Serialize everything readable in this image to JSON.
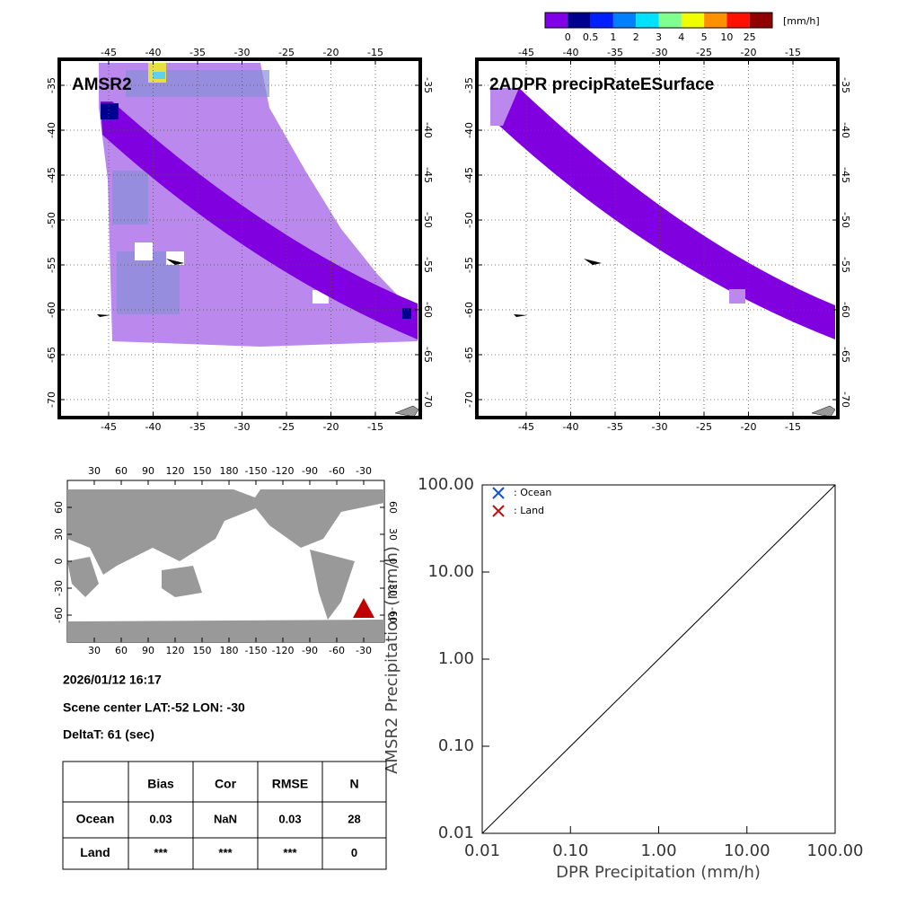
{
  "colorbar": {
    "labels": [
      0,
      0.5,
      1,
      2,
      3,
      4,
      5,
      10,
      25
    ],
    "colors": [
      "#8000e8",
      "#000090",
      "#0020ff",
      "#0080ff",
      "#00e0ff",
      "#80ff90",
      "#f0ff00",
      "#ff9000",
      "#ff1000",
      "#900000"
    ],
    "unit": "[mm/h]"
  },
  "maps": [
    {
      "title": "AMSR2",
      "lon_ticks": [
        -45,
        -40,
        -35,
        -30,
        -25,
        -20,
        -15
      ],
      "lat_ticks": [
        -35,
        -40,
        -45,
        -50,
        -55,
        -60,
        -65,
        -70
      ]
    },
    {
      "title": "2ADPR precipRateESurface",
      "lon_ticks": [
        -45,
        -40,
        -35,
        -30,
        -25,
        -20,
        -15
      ],
      "lat_ticks": [
        -35,
        -40,
        -45,
        -50,
        -55,
        -60,
        -65,
        -70
      ]
    }
  ],
  "world_map": {
    "lon_ticks": [
      30,
      60,
      90,
      120,
      150,
      180,
      -150,
      -120,
      -90,
      -60,
      -30
    ],
    "lat_ticks": [
      60,
      30,
      0,
      -30,
      -60
    ]
  },
  "info": {
    "datetime": "2026/01/12 16:17",
    "scene_center": "Scene center LAT:-52   LON: -30",
    "delta_t": "DeltaT:   61 (sec)"
  },
  "table": {
    "columns": [
      "Bias",
      "Cor",
      "RMSE",
      "N"
    ],
    "rows": [
      {
        "label": "Ocean",
        "cells": [
          0.03,
          "NaN",
          0.03,
          28
        ]
      },
      {
        "label": "Land",
        "cells": [
          "***",
          "***",
          "***",
          0
        ]
      }
    ]
  },
  "chart_data": {
    "type": "scatter",
    "xlabel": "DPR Precipitation (mm/h)",
    "ylabel": "AMSR2 Precipitation (mm/h)",
    "xscale": "log",
    "yscale": "log",
    "xlim": [
      0.01,
      100
    ],
    "ylim": [
      0.01,
      100
    ],
    "xticks": [
      0.01,
      {
        "value": 0.1,
        "label": "0.10"
      },
      {
        "value": 1,
        "label": "1.00"
      },
      {
        "value": 10,
        "label": "10.00"
      },
      {
        "value": 100,
        "label": "100.00"
      }
    ],
    "yticks": [
      0.01,
      {
        "value": 0.1,
        "label": "0.10"
      },
      {
        "value": 1,
        "label": "1.00"
      },
      {
        "value": 10,
        "label": "10.00"
      },
      {
        "value": 100,
        "label": "100.00"
      }
    ],
    "series": [
      {
        "name": ": Ocean",
        "color": "#1050e0",
        "x": [],
        "values": []
      },
      {
        "name": ": Land",
        "color": "#c01010",
        "x": [],
        "values": []
      }
    ]
  }
}
